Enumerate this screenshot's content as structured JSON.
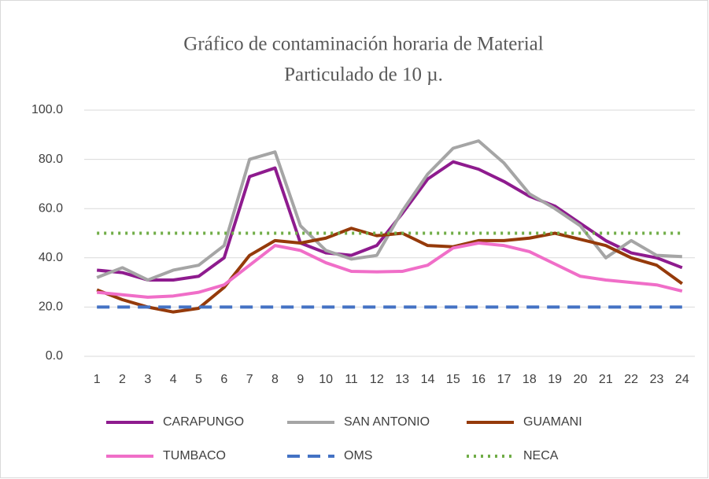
{
  "chart_data": {
    "type": "line",
    "title": [
      "Gráfico de contaminación horaria de Material",
      "Particulado de 10 µ."
    ],
    "categories": [
      "1",
      "2",
      "3",
      "4",
      "5",
      "6",
      "7",
      "8",
      "9",
      "10",
      "11",
      "12",
      "13",
      "14",
      "15",
      "16",
      "17",
      "18",
      "19",
      "20",
      "21",
      "22",
      "23",
      "24"
    ],
    "ylim": [
      0,
      100
    ],
    "yticks": [
      {
        "value": 0,
        "label": "0.0"
      },
      {
        "value": 20,
        "label": "20.0"
      },
      {
        "value": 40,
        "label": "40.0"
      },
      {
        "value": 60,
        "label": "60.0"
      },
      {
        "value": 80,
        "label": "80.0"
      },
      {
        "value": 100,
        "label": "100.0"
      }
    ],
    "grid": true,
    "legend": "bottom",
    "series": [
      {
        "name": "CARAPUNGO",
        "color": "#8e1b8e",
        "dash": "solid",
        "values": [
          35,
          34,
          31,
          31,
          32.5,
          40,
          73,
          76.5,
          46,
          42,
          41,
          45,
          58,
          72,
          79,
          76,
          71,
          65,
          61,
          54,
          47,
          42,
          40,
          36
        ]
      },
      {
        "name": "SAN ANTONIO",
        "color": "#a5a5a5",
        "dash": "solid",
        "values": [
          32,
          36,
          31,
          35,
          37,
          45,
          80,
          83,
          53,
          43,
          39.5,
          41,
          59,
          74,
          84.5,
          87.5,
          78.5,
          66,
          60,
          53,
          40,
          47,
          41,
          40.5
        ]
      },
      {
        "name": "GUAMANI",
        "color": "#953a0a",
        "dash": "solid",
        "values": [
          27,
          23,
          20,
          18,
          19.5,
          28,
          41,
          47,
          46,
          48,
          52,
          49,
          50,
          45,
          44.5,
          47,
          47,
          48,
          50,
          47.5,
          45,
          40,
          37,
          29.5
        ]
      },
      {
        "name": "TUMBACO",
        "color": "#f06ec8",
        "dash": "solid",
        "values": [
          26,
          25,
          24,
          24.5,
          26,
          29,
          37,
          45,
          43,
          38,
          34.5,
          34.3,
          34.5,
          37,
          44,
          46,
          45,
          42.5,
          37.5,
          32.5,
          31,
          30,
          29,
          26.5
        ]
      },
      {
        "name": "OMS",
        "color": "#4472c4",
        "dash": "dashed",
        "values": [
          20,
          20,
          20,
          20,
          20,
          20,
          20,
          20,
          20,
          20,
          20,
          20,
          20,
          20,
          20,
          20,
          20,
          20,
          20,
          20,
          20,
          20,
          20,
          20
        ]
      },
      {
        "name": "NECA",
        "color": "#70ad47",
        "dash": "dotted",
        "values": [
          50,
          50,
          50,
          50,
          50,
          50,
          50,
          50,
          50,
          50,
          50,
          50,
          50,
          50,
          50,
          50,
          50,
          50,
          50,
          50,
          50,
          50,
          50,
          50
        ]
      }
    ]
  }
}
